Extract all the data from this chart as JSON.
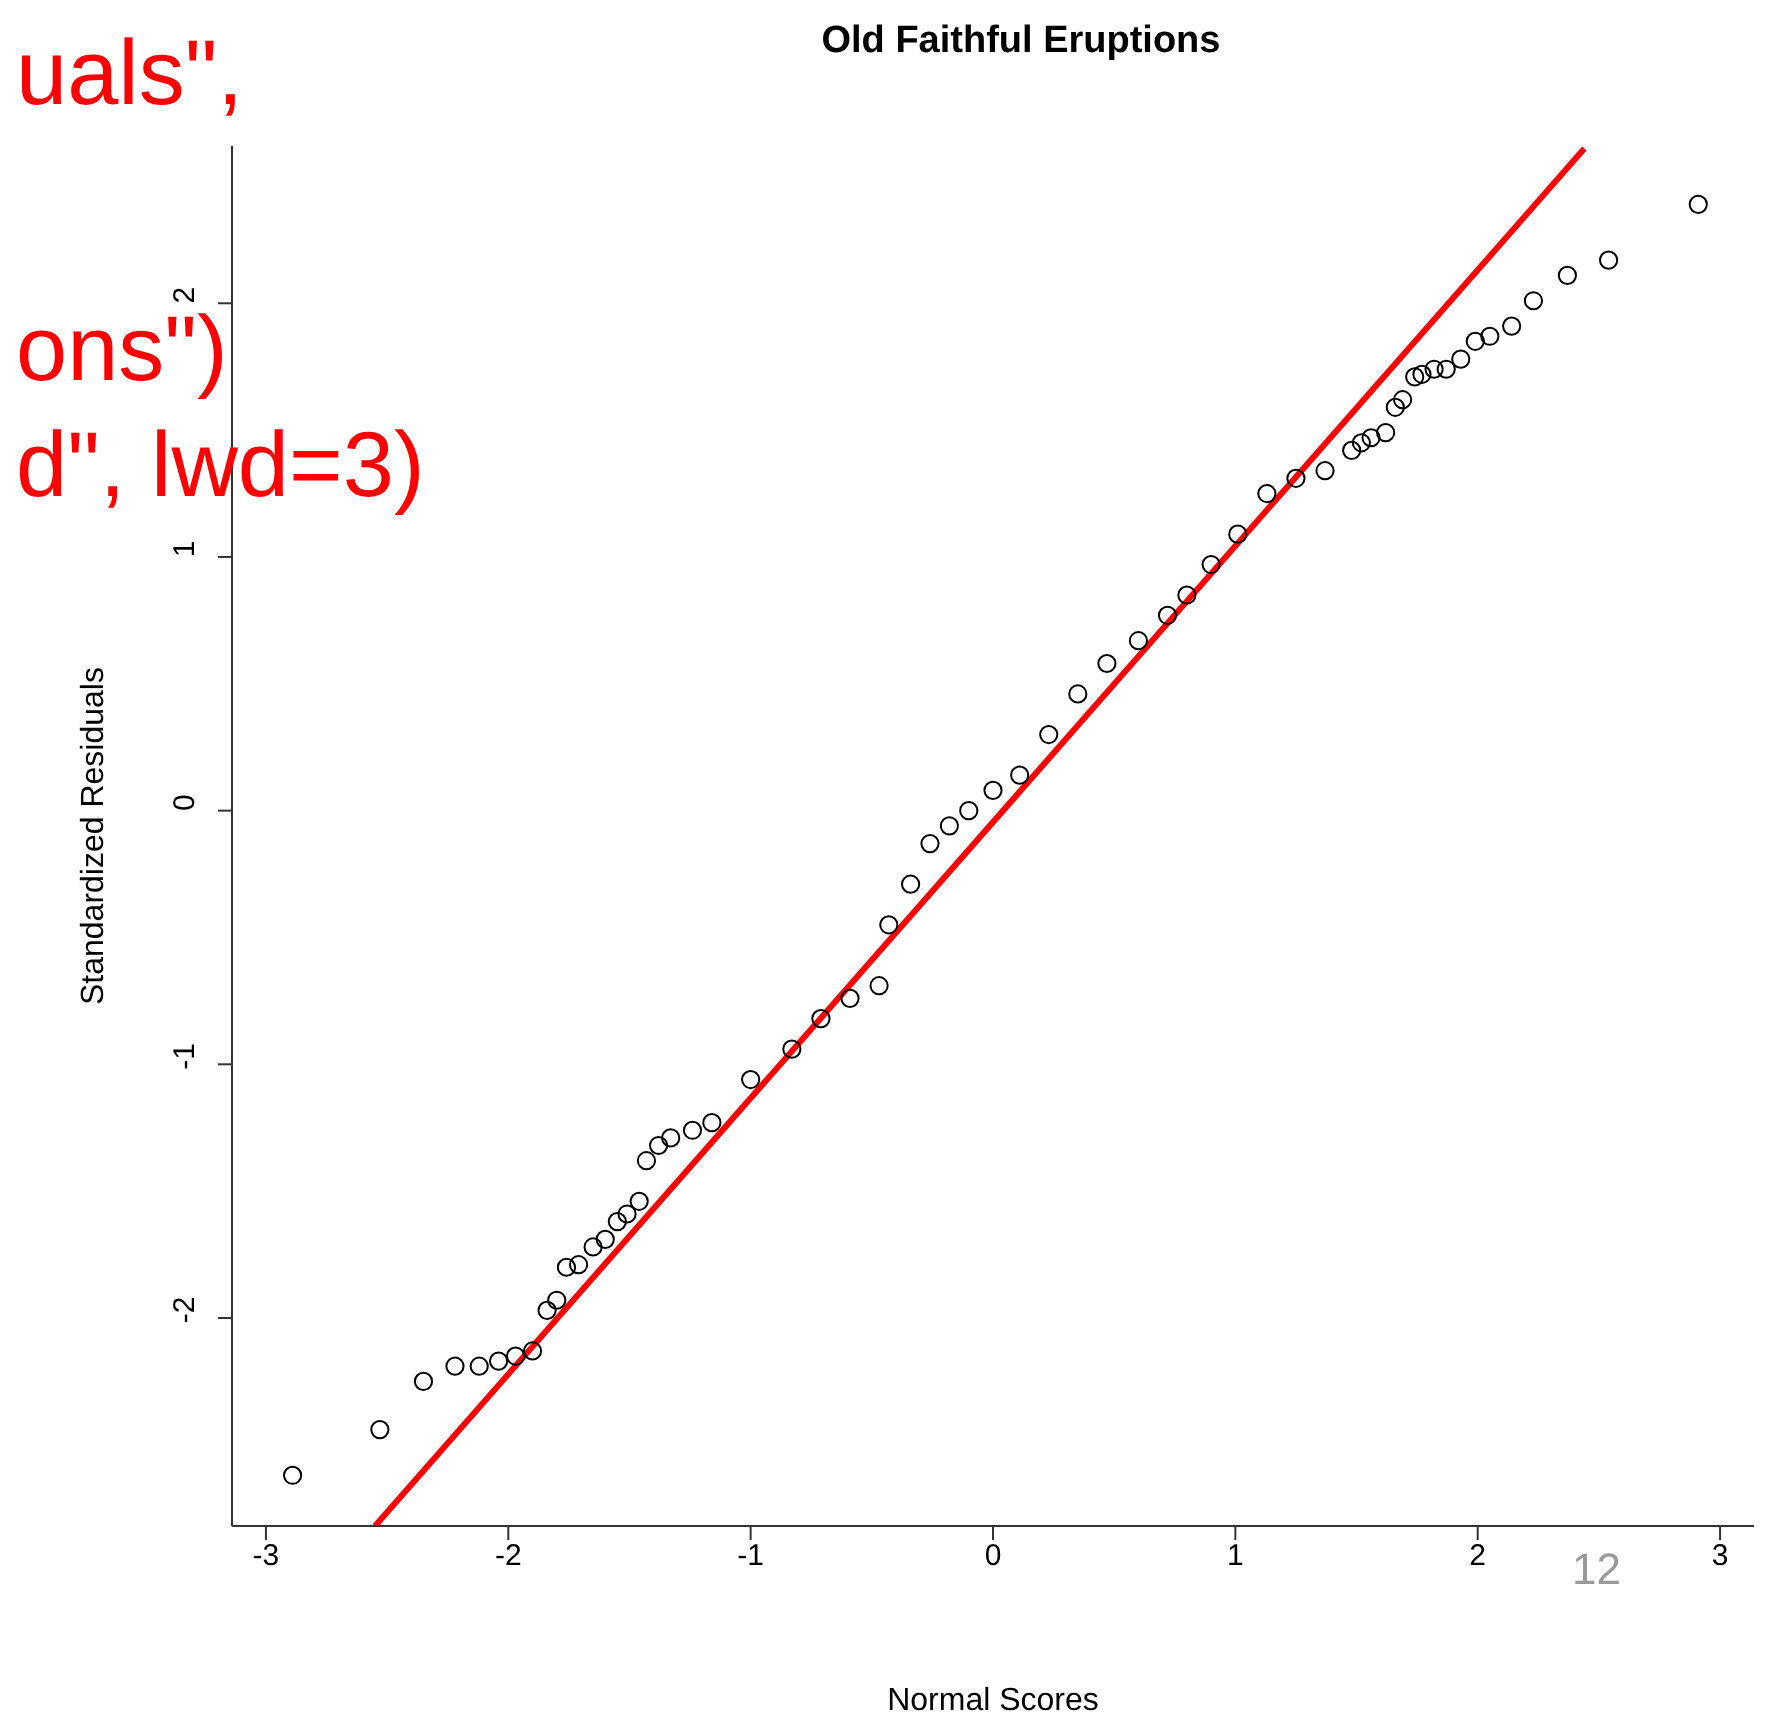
{
  "chart_data": {
    "type": "scatter",
    "title": "Old Faithful Eruptions",
    "xlabel": "Normal Scores",
    "ylabel": "Standardized Residuals",
    "xlim": [
      -3.14,
      3.14
    ],
    "ylim": [
      -2.82,
      2.62
    ],
    "xticks": [
      -3,
      -2,
      -1,
      0,
      1,
      2,
      3
    ],
    "yticks": [
      -2,
      -1,
      0,
      1,
      2
    ],
    "grid": false,
    "legend": false,
    "marker": "circle",
    "annotations": [
      "uals\",",
      "ons\")",
      "d\", lwd=3)",
      "12"
    ],
    "series": [
      {
        "type": "scatter",
        "color": "#000000",
        "x": [
          -2.89,
          -2.53,
          -2.35,
          -2.22,
          -2.12,
          -2.04,
          -1.97,
          -1.9,
          -1.84,
          -1.8,
          -1.76,
          -1.71,
          -1.65,
          -1.6,
          -1.55,
          -1.51,
          -1.46,
          -1.43,
          -1.38,
          -1.33,
          -1.24,
          -1.16,
          -1.0,
          -0.83,
          -0.71,
          -0.59,
          -0.47,
          -0.43,
          -0.34,
          -0.26,
          -0.18,
          -0.1,
          0,
          0.11,
          0.23,
          0.35,
          0.47,
          0.6,
          0.72,
          0.8,
          0.9,
          1.01,
          1.13,
          1.25,
          1.37,
          1.48,
          1.52,
          1.56,
          1.62,
          1.66,
          1.69,
          1.74,
          1.77,
          1.82,
          1.87,
          1.93,
          1.99,
          2.05,
          2.14,
          2.23,
          2.37,
          2.54,
          2.91
        ],
        "values": [
          -2.62,
          -2.44,
          -2.25,
          -2.19,
          -2.19,
          -2.17,
          -2.15,
          -2.13,
          -1.97,
          -1.93,
          -1.8,
          -1.79,
          -1.72,
          -1.69,
          -1.62,
          -1.59,
          -1.54,
          -1.38,
          -1.32,
          -1.29,
          -1.26,
          -1.23,
          -1.06,
          -0.94,
          -0.82,
          -0.74,
          -0.69,
          -0.45,
          -0.29,
          -0.13,
          -0.06,
          0,
          0.08,
          0.14,
          0.3,
          0.46,
          0.58,
          0.67,
          0.77,
          0.85,
          0.97,
          1.09,
          1.25,
          1.31,
          1.34,
          1.42,
          1.45,
          1.47,
          1.49,
          1.59,
          1.62,
          1.71,
          1.72,
          1.74,
          1.74,
          1.78,
          1.85,
          1.87,
          1.91,
          2.01,
          2.11,
          2.17,
          2.39
        ]
      },
      {
        "type": "line",
        "color": "#ff0000",
        "line_style": "solid",
        "marker": "none",
        "x": [
          -2.55,
          2.44
        ],
        "values": [
          -2.82,
          2.61
        ]
      }
    ]
  }
}
